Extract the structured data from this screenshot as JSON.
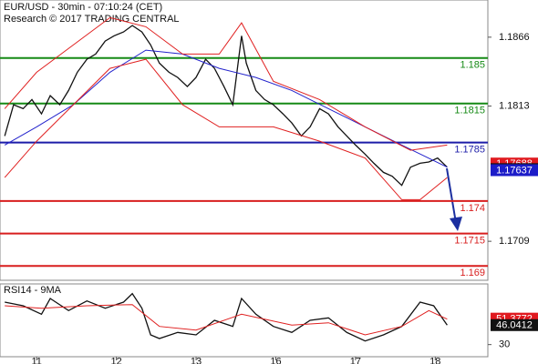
{
  "chart_data": [
    {
      "type": "line",
      "title": "EUR/USD - 30min - 07:10:24 (CET)",
      "subtitle": "Research © 2017 TRADING CENTRAL",
      "xlim": [
        -0.46,
        5.66
      ],
      "ylim": [
        1.1679,
        1.18946
      ],
      "yticks": [
        1.1866,
        1.1813,
        1.1709
      ],
      "levels": [
        {
          "value": 1.185,
          "color": "#168a16"
        },
        {
          "value": 1.1815,
          "color": "#168a16"
        },
        {
          "value": 1.1785,
          "color": "#1c1ca8"
        },
        {
          "value": 1.174,
          "color": "#d81e1e"
        },
        {
          "value": 1.1715,
          "color": "#d81e1e"
        },
        {
          "value": 1.169,
          "color": "#d81e1e"
        }
      ],
      "markers": [
        {
          "value": 1.17688,
          "color": "#e0191f"
        },
        {
          "value": 1.17645,
          "color": "#111111"
        },
        {
          "value": 1.17637,
          "color": "#1c1cc8"
        }
      ],
      "series": [
        {
          "color": "#111111",
          "x": [
            -0.4,
            -0.29,
            -0.17,
            -0.06,
            0.06,
            0.17,
            0.29,
            0.4,
            0.51,
            0.63,
            0.74,
            0.86,
            0.97,
            1.09,
            1.2,
            1.32,
            1.43,
            1.54,
            1.66,
            1.77,
            1.89,
            2.0,
            2.12,
            2.23,
            2.35,
            2.46,
            2.57,
            2.63,
            2.75,
            2.86,
            2.97,
            3.09,
            3.2,
            3.32,
            3.43,
            3.55,
            3.66,
            3.78,
            3.89,
            4.0,
            4.12,
            4.23,
            4.35,
            4.46,
            4.58,
            4.69,
            4.81,
            4.92,
            5.03,
            5.15
          ],
          "values": [
            1.179,
            1.1814,
            1.1811,
            1.1818,
            1.1807,
            1.1821,
            1.1814,
            1.1825,
            1.1839,
            1.1849,
            1.1853,
            1.1863,
            1.1867,
            1.187,
            1.1875,
            1.187,
            1.186,
            1.1846,
            1.1839,
            1.1835,
            1.1828,
            1.1835,
            1.1849,
            1.1842,
            1.1828,
            1.1814,
            1.1867,
            1.1846,
            1.1825,
            1.1818,
            1.1814,
            1.1807,
            1.18,
            1.179,
            1.1797,
            1.1811,
            1.1807,
            1.1797,
            1.179,
            1.1783,
            1.1776,
            1.1769,
            1.1762,
            1.1759,
            1.1752,
            1.1766,
            1.1769,
            1.177,
            1.1773,
            1.1766
          ]
        },
        {
          "color": "#2222cc",
          "x": [
            -0.4,
            0,
            0.46,
            0.92,
            1.37,
            1.83,
            2.29,
            2.75,
            3.2,
            3.66,
            4.12,
            4.58,
            5.15
          ],
          "values": [
            1.1783,
            1.1797,
            1.1814,
            1.1839,
            1.1856,
            1.1853,
            1.1842,
            1.1835,
            1.1825,
            1.1811,
            1.1797,
            1.1783,
            1.1766
          ]
        },
        {
          "color": "#e02020",
          "x": [
            -0.4,
            0,
            0.46,
            0.92,
            1.37,
            1.83,
            2.29,
            2.57,
            2.97,
            3.55,
            4.12,
            4.69,
            5.15
          ],
          "values": [
            1.1811,
            1.1839,
            1.186,
            1.1881,
            1.1874,
            1.1853,
            1.1853,
            1.1877,
            1.1832,
            1.1818,
            1.1797,
            1.1779,
            1.1783
          ]
        },
        {
          "color": "#e02020",
          "x": [
            -0.4,
            0,
            0.46,
            0.92,
            1.37,
            1.83,
            2.29,
            2.97,
            3.55,
            4.12,
            4.58,
            4.81,
            5.15
          ],
          "values": [
            1.1758,
            1.1786,
            1.1814,
            1.1842,
            1.1849,
            1.1814,
            1.1797,
            1.1797,
            1.1786,
            1.1773,
            1.1741,
            1.1741,
            1.1758
          ]
        }
      ]
    },
    {
      "type": "line",
      "title": "RSI14 - 9MA",
      "xlim": [
        -0.46,
        5.66
      ],
      "ylim": [
        20,
        80
      ],
      "yticks": [
        30
      ],
      "xticks": [
        {
          "value": 0,
          "label": "11"
        },
        {
          "value": 1,
          "label": "12"
        },
        {
          "value": 2,
          "label": "13"
        },
        {
          "value": 3,
          "label": "16"
        },
        {
          "value": 4,
          "label": "17"
        },
        {
          "value": 5,
          "label": "18"
        }
      ],
      "markers": [
        {
          "value": 51.3772,
          "color": "#e0191f"
        },
        {
          "value": 46.0412,
          "color": "#111111"
        }
      ],
      "series": [
        {
          "color": "#111111",
          "x": [
            -0.4,
            -0.17,
            0.06,
            0.17,
            0.4,
            0.63,
            0.86,
            1.09,
            1.2,
            1.32,
            1.43,
            1.54,
            1.77,
            2.0,
            2.23,
            2.46,
            2.57,
            2.75,
            2.97,
            3.2,
            3.43,
            3.66,
            3.89,
            4.12,
            4.35,
            4.58,
            4.81,
            4.98,
            5.15
          ],
          "values": [
            65,
            62,
            55,
            68,
            58,
            66,
            60,
            65,
            72,
            60,
            38,
            35,
            40,
            38,
            50,
            45,
            68,
            55,
            45,
            40,
            50,
            52,
            40,
            33,
            38,
            45,
            65,
            62,
            46
          ]
        },
        {
          "color": "#e02020",
          "x": [
            -0.4,
            0.06,
            0.63,
            1.2,
            1.54,
            2.0,
            2.57,
            3.2,
            3.66,
            4.12,
            4.58,
            4.92,
            5.15
          ],
          "values": [
            62,
            60,
            62,
            63,
            45,
            42,
            55,
            46,
            48,
            38,
            45,
            58,
            51
          ]
        }
      ]
    }
  ]
}
